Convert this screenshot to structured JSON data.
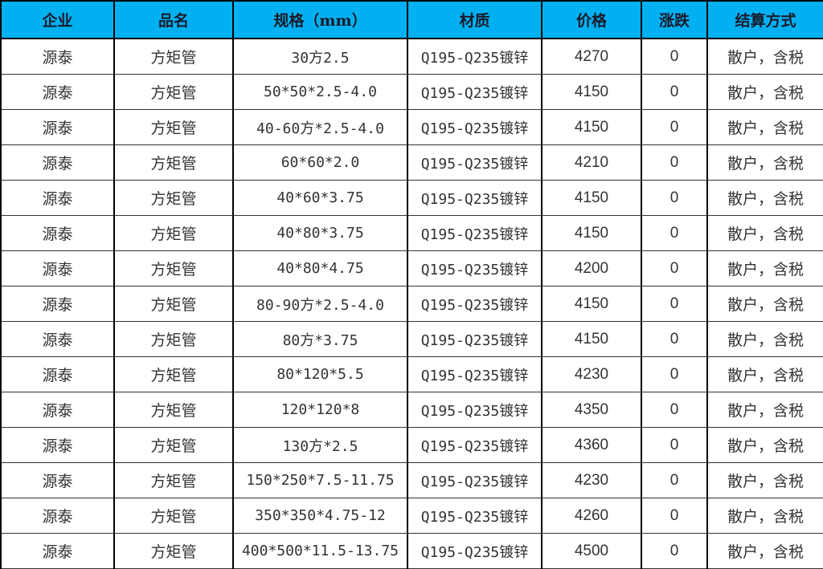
{
  "header_color": "#00b0f0",
  "columns": [
    "企业",
    "品名",
    "规格（mm）",
    "材质",
    "价格",
    "涨跌",
    "结算方式"
  ],
  "rows": [
    [
      "源泰",
      "方矩管",
      "30方2.5",
      "Q195-Q235镀锌",
      "4270",
      "0",
      "散户，含税"
    ],
    [
      "源泰",
      "方矩管",
      "50*50*2.5-4.0",
      "Q195-Q235镀锌",
      "4150",
      "0",
      "散户，含税"
    ],
    [
      "源泰",
      "方矩管",
      "40-60方*2.5-4.0",
      "Q195-Q235镀锌",
      "4150",
      "0",
      "散户，含税"
    ],
    [
      "源泰",
      "方矩管",
      "60*60*2.0",
      "Q195-Q235镀锌",
      "4210",
      "0",
      "散户，含税"
    ],
    [
      "源泰",
      "方矩管",
      "40*60*3.75",
      "Q195-Q235镀锌",
      "4150",
      "0",
      "散户，含税"
    ],
    [
      "源泰",
      "方矩管",
      "40*80*3.75",
      "Q195-Q235镀锌",
      "4150",
      "0",
      "散户，含税"
    ],
    [
      "源泰",
      "方矩管",
      "40*80*4.75",
      "Q195-Q235镀锌",
      "4200",
      "0",
      "散户，含税"
    ],
    [
      "源泰",
      "方矩管",
      "80-90方*2.5-4.0",
      "Q195-Q235镀锌",
      "4150",
      "0",
      "散户，含税"
    ],
    [
      "源泰",
      "方矩管",
      "80方*3.75",
      "Q195-Q235镀锌",
      "4150",
      "0",
      "散户，含税"
    ],
    [
      "源泰",
      "方矩管",
      "80*120*5.5",
      "Q195-Q235镀锌",
      "4230",
      "0",
      "散户，含税"
    ],
    [
      "源泰",
      "方矩管",
      "120*120*8",
      "Q195-Q235镀锌",
      "4350",
      "0",
      "散户，含税"
    ],
    [
      "源泰",
      "方矩管",
      "130方*2.5",
      "Q195-Q235镀锌",
      "4360",
      "0",
      "散户，含税"
    ],
    [
      "源泰",
      "方矩管",
      "150*250*7.5-11.75",
      "Q195-Q235镀锌",
      "4230",
      "0",
      "散户，含税"
    ],
    [
      "源泰",
      "方矩管",
      "350*350*4.75-12",
      "Q195-Q235镀锌",
      "4260",
      "0",
      "散户，含税"
    ],
    [
      "源泰",
      "方矩管",
      "400*500*11.5-13.75",
      "Q195-Q235镀锌",
      "4500",
      "0",
      "散户，含税"
    ]
  ]
}
